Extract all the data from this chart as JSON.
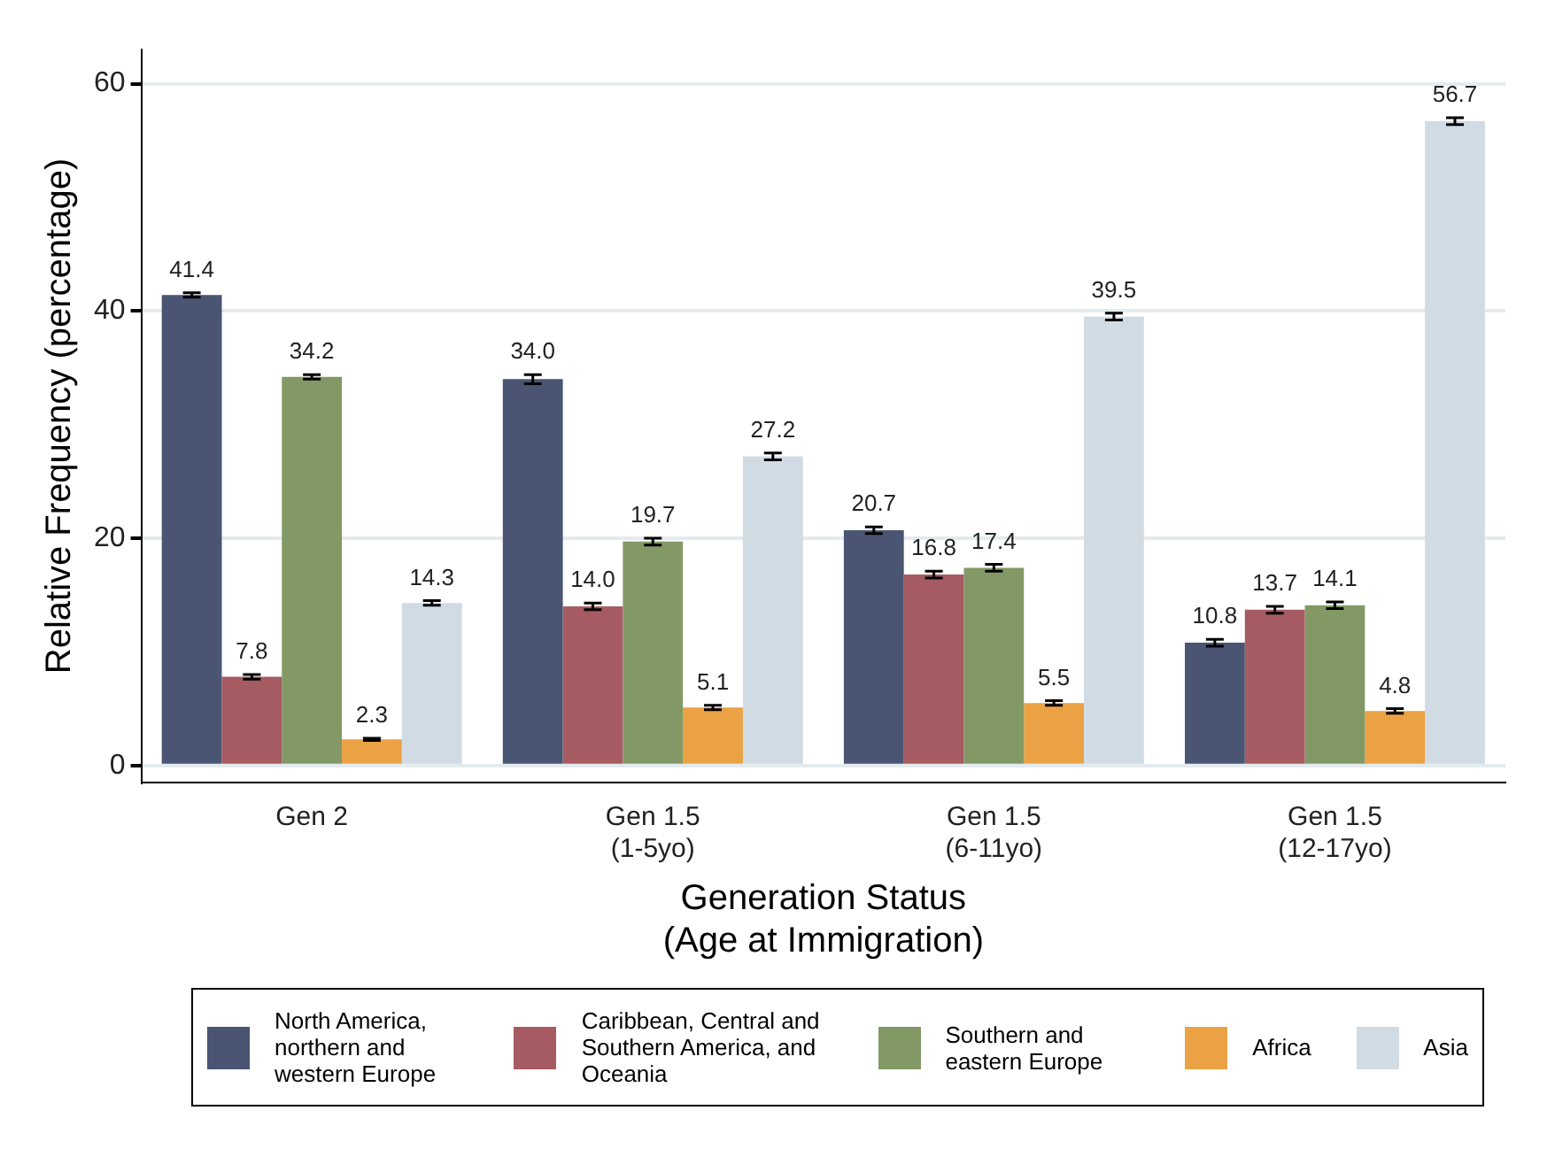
{
  "chart_data": {
    "type": "bar",
    "xlabel": "Generation Status (Age at Immigration)",
    "ylabel": "Relative Frequency (percentage)",
    "categories": [
      "Gen 2",
      "Gen 1.5 (1-5yo)",
      "Gen 1.5 (6-11yo)",
      "Gen 1.5 (12-17yo)"
    ],
    "series": [
      {
        "name": "North America, northern and western Europe",
        "color": "#4a5573",
        "values": [
          41.4,
          34,
          20.7,
          10.8
        ],
        "value_labels": [
          "41.4",
          "34.0",
          "20.7",
          "10.8"
        ],
        "errors": [
          0.2,
          0.4,
          0.3,
          0.3
        ]
      },
      {
        "name": "Caribbean, Central and Southern America, and Oceania",
        "color": "#a65b62",
        "values": [
          7.8,
          14,
          16.8,
          13.7
        ],
        "value_labels": [
          "7.8",
          "14.0",
          "16.8",
          "13.7"
        ],
        "errors": [
          0.2,
          0.3,
          0.3,
          0.3
        ]
      },
      {
        "name": "Southern and eastern Europe",
        "color": "#829966",
        "values": [
          34.2,
          19.7,
          17.4,
          14.1
        ],
        "value_labels": [
          "34.2",
          "19.7",
          "17.4",
          "14.1"
        ],
        "errors": [
          0.2,
          0.3,
          0.3,
          0.3
        ]
      },
      {
        "name": "Africa",
        "color": "#eba244",
        "values": [
          2.3,
          5.1,
          5.5,
          4.8
        ],
        "value_labels": [
          "2.3",
          "5.1",
          "5.5",
          "4.8"
        ],
        "errors": [
          0.1,
          0.2,
          0.2,
          0.2
        ]
      },
      {
        "name": "Asia",
        "color": "#d1dbe4",
        "values": [
          14.3,
          27.2,
          39.5,
          56.7
        ],
        "value_labels": [
          "14.3",
          "27.2",
          "39.5",
          "56.7"
        ],
        "errors": [
          0.2,
          0.3,
          0.3,
          0.3
        ]
      }
    ],
    "ylim": [
      -1.5,
      63
    ],
    "yticks": [
      0,
      20,
      40,
      60
    ],
    "grid": "y",
    "legend": "bottom"
  }
}
